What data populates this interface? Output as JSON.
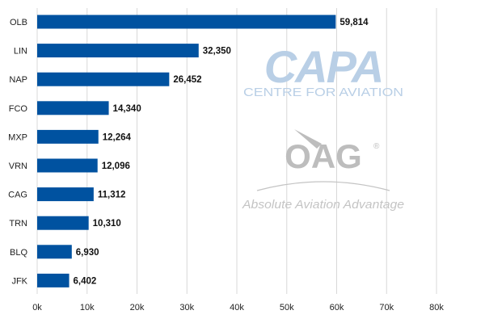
{
  "chart_data": {
    "type": "bar",
    "orientation": "horizontal",
    "categories": [
      "OLB",
      "LIN",
      "NAP",
      "FCO",
      "MXP",
      "VRN",
      "CAG",
      "TRN",
      "BLQ",
      "JFK"
    ],
    "values": [
      59814,
      32350,
      26452,
      14340,
      12264,
      12096,
      11312,
      10310,
      6930,
      6402
    ],
    "value_labels": [
      "59,814",
      "32,350",
      "26,452",
      "14,340",
      "12,264",
      "12,096",
      "11,312",
      "10,310",
      "6,930",
      "6,402"
    ],
    "x_ticks": [
      0,
      10000,
      20000,
      30000,
      40000,
      50000,
      60000,
      70000,
      80000
    ],
    "x_tick_labels": [
      "0k",
      "10k",
      "20k",
      "30k",
      "40k",
      "50k",
      "60k",
      "70k",
      "80k"
    ],
    "xlim": [
      0,
      80000
    ],
    "grid": "vertical",
    "legend": "none",
    "title": "",
    "xlabel": "",
    "ylabel": ""
  },
  "colors": {
    "bar": "#0052a0",
    "grid": "#d8d8d8",
    "axis_text": "#222222",
    "value_text": "#111111",
    "capa_logo": "#b9cfe6",
    "oag_logo": "#bdbdbd",
    "oag_tagline": "#c4c4c4"
  },
  "watermarks": {
    "capa_logo_text": "CAPA",
    "capa_subtext": "CENTRE FOR AVIATION",
    "oag_logo_text": "OAG",
    "oag_registered": "®",
    "oag_tagline": "Absolute Aviation Advantage"
  }
}
